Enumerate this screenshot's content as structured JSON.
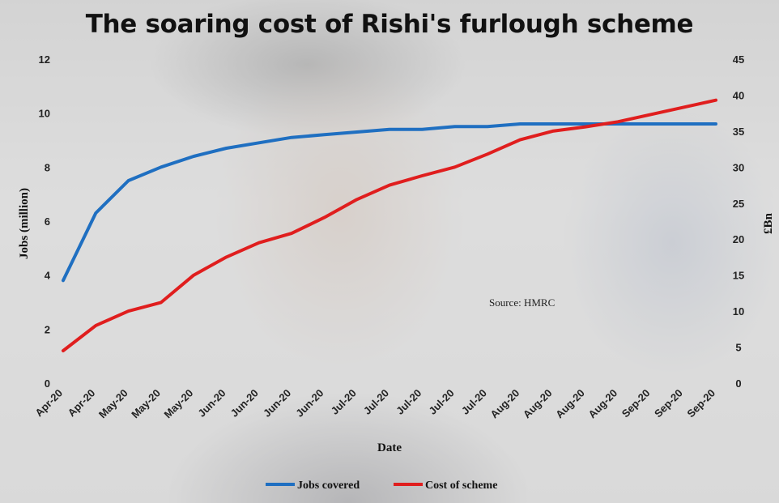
{
  "chart_data": {
    "type": "line",
    "title": "The soaring cost of Rishi's furlough scheme",
    "xlabel": "Date",
    "ylabel": "Jobs (million)",
    "y2label": "£Bn",
    "annotation": "Source: HMRC",
    "x": [
      "Apr-20",
      "Apr-20",
      "May-20",
      "May-20",
      "May-20",
      "Jun-20",
      "Jun-20",
      "Jun-20",
      "Jun-20",
      "Jul-20",
      "Jul-20",
      "Jul-20",
      "Jul-20",
      "Jul-20",
      "Aug-20",
      "Aug-20",
      "Aug-20",
      "Aug-20",
      "Sep-20",
      "Sep-20",
      "Sep-20"
    ],
    "ylim": [
      0,
      12
    ],
    "y_ticks": [
      0,
      2,
      4,
      6,
      8,
      10,
      12
    ],
    "y2lim": [
      0,
      45
    ],
    "y2_ticks": [
      0,
      5,
      10,
      15,
      20,
      25,
      30,
      35,
      40,
      45
    ],
    "grid": false,
    "legend_position": "bottom-center",
    "series": [
      {
        "name": "Jobs covered",
        "axis": "left",
        "color": "#1f6fc1",
        "values": [
          3.8,
          6.3,
          7.5,
          8.0,
          8.4,
          8.7,
          8.9,
          9.1,
          9.2,
          9.3,
          9.4,
          9.4,
          9.5,
          9.5,
          9.6,
          9.6,
          9.6,
          9.6,
          9.6,
          9.6,
          9.6
        ]
      },
      {
        "name": "Cost of scheme",
        "axis": "right",
        "color": "#e01e1e",
        "values": [
          4.5,
          8.0,
          10.0,
          11.2,
          15.0,
          17.5,
          19.5,
          20.8,
          23.0,
          25.5,
          27.5,
          28.8,
          30.0,
          31.8,
          33.8,
          35.0,
          35.6,
          36.3,
          37.3,
          38.3,
          39.3
        ]
      }
    ]
  }
}
